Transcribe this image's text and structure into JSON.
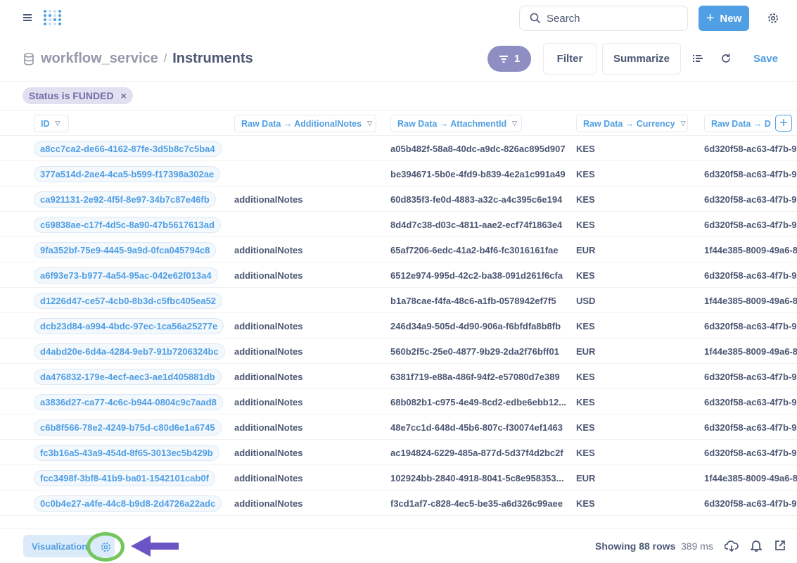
{
  "header": {
    "search_placeholder": "Search",
    "new_label": "New"
  },
  "breadcrumb": {
    "database": "workflow_service",
    "separator": "/",
    "table": "Instruments"
  },
  "toolbar": {
    "filter_count": "1",
    "filter_label": "Filter",
    "summarize_label": "Summarize",
    "save_label": "Save"
  },
  "active_filter": {
    "label": "Status is FUNDED",
    "remove": "×"
  },
  "columns": [
    "ID",
    "Raw Data → AdditionalNotes",
    "Raw Data → AttachmentId",
    "Raw Data → Currency",
    "Raw Data → D"
  ],
  "rows": [
    [
      "a8cc7ca2-de66-4162-87fe-3d5b8c7c5ba4",
      "",
      "a05b482f-58a8-40dc-a9dc-826ac895d907",
      "KES",
      "6d320f58-ac63-4f7b-97"
    ],
    [
      "377a514d-2ae4-4ca5-b599-f17398a302ae",
      "",
      "be394671-5b0e-4fd9-b839-4e2a1c991a49",
      "KES",
      "6d320f58-ac63-4f7b-97"
    ],
    [
      "ca921131-2e92-4f5f-8e97-34b7c87e46fb",
      "additionalNotes",
      "60d835f3-fe0d-4883-a32c-a4c395c6e194",
      "KES",
      "6d320f58-ac63-4f7b-97"
    ],
    [
      "c69838ae-c17f-4d5c-8a90-47b5617613ad",
      "",
      "8d4d7c38-d03c-4811-aae2-ecf74f1863e4",
      "KES",
      "6d320f58-ac63-4f7b-97"
    ],
    [
      "9fa352bf-75e9-4445-9a9d-0fca045794c8",
      "additionalNotes",
      "65af7206-6edc-41a2-b4f6-fc3016161fae",
      "EUR",
      "1f44e385-8009-49a6-8"
    ],
    [
      "a6f93e73-b977-4a54-95ac-042e62f013a4",
      "additionalNotes",
      "6512e974-995d-42c2-ba38-091d261f6cfa",
      "KES",
      "6d320f58-ac63-4f7b-97"
    ],
    [
      "d1226d47-ce57-4cb0-8b3d-c5fbc405ea52",
      "",
      "b1a78cae-f4fa-48c6-a1fb-0578942ef7f5",
      "USD",
      "1f44e385-8009-49a6-8"
    ],
    [
      "dcb23d84-a994-4bdc-97ec-1ca56a25277e",
      "additionalNotes",
      "246d34a9-505d-4d90-906a-f6bfdfa8b8fb",
      "KES",
      "6d320f58-ac63-4f7b-97"
    ],
    [
      "d4abd20e-6d4a-4284-9eb7-91b7206324bc",
      "additionalNotes",
      "560b2f5c-25e0-4877-9b29-2da2f76bff01",
      "EUR",
      "1f44e385-8009-49a6-8"
    ],
    [
      "da476832-179e-4ecf-aec3-ae1d405881db",
      "additionalNotes",
      "6381f719-e88a-486f-94f2-e57080d7e389",
      "KES",
      "6d320f58-ac63-4f7b-97"
    ],
    [
      "a3836d27-ca77-4c6c-b944-0804c9c7aad8",
      "additionalNotes",
      "68b082b1-c975-4e49-8cd2-edbe6ebb12...",
      "KES",
      "6d320f58-ac63-4f7b-97"
    ],
    [
      "c6b8f566-78e2-4249-b75d-c80d6e1a6745",
      "additionalNotes",
      "48e7cc1d-648d-45b6-807c-f30074ef1463",
      "KES",
      "6d320f58-ac63-4f7b-97"
    ],
    [
      "fc3b16a5-43a9-454d-8f65-3013ec5b429b",
      "additionalNotes",
      "ac194824-6229-485a-877d-5d37f4d2bc2f",
      "KES",
      "6d320f58-ac63-4f7b-97"
    ],
    [
      "fcc3498f-3bf8-41b9-ba01-1542101cab0f",
      "additionalNotes",
      "102924bb-2840-4918-8041-5c8e958353...",
      "EUR",
      "1f44e385-8009-49a6-8"
    ],
    [
      "0c0b4e27-a4fe-44c8-b9d8-2d4726a22adc",
      "additionalNotes",
      "f3cd1af7-c828-4ec5-be35-a6d326c99aee",
      "KES",
      "6d320f58-ac63-4f7b-97"
    ]
  ],
  "footer": {
    "visualization_label": "Visualization",
    "row_count": "Showing 88 rows",
    "query_time": "389 ms"
  },
  "colors": {
    "brand": "#509ee3",
    "filter_accent": "#8f8ec3",
    "highlight_ring": "#74c65d",
    "annotation_arrow": "#6b55c4"
  }
}
